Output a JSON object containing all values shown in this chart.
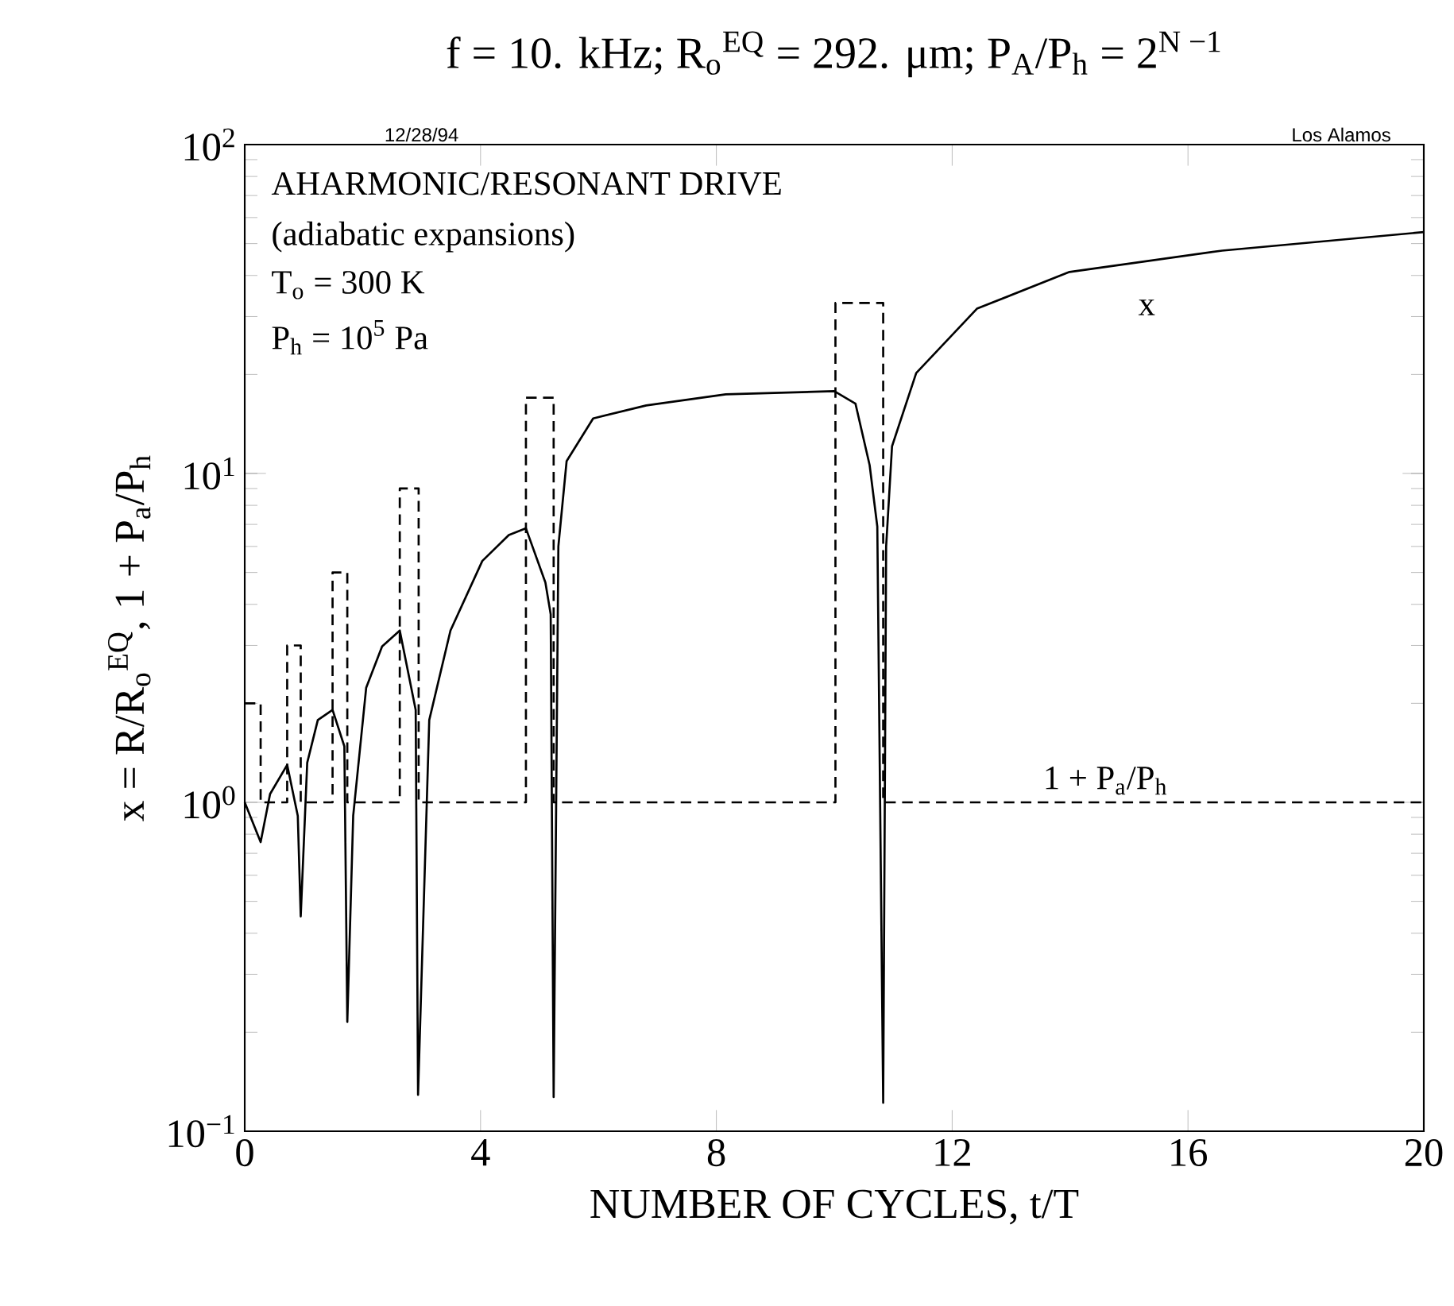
{
  "chart_data": {
    "type": "line",
    "title": "f = 10. kHz; R$_{o}$$^{EQ}$ = 292. μm; P$_{A}$/P$_{h}$ = 2$^{N −1}$",
    "xlabel": "NUMBER OF CYCLES, t/T",
    "ylabel": "x = R/R$_{o}$$^{EQ}$, 1 + P$_{a}$/P$_{h}$",
    "log": "y",
    "xlim": [
      0,
      20
    ],
    "xticks": [
      0,
      4,
      8,
      12,
      16,
      20
    ],
    "ylim": [
      0.1,
      100
    ],
    "yticks": [
      {
        "value": 0.1,
        "label": "10$^{−1}$"
      },
      {
        "value": 1,
        "label": "10$^{0}$"
      },
      {
        "value": 10,
        "label": "10$^{1}$"
      },
      {
        "value": 100,
        "label": "10$^{2}$"
      }
    ],
    "grid": false,
    "series": [
      {
        "line_style": "solid",
        "color": "#000000",
        "x": [
          0,
          0.27,
          0.43,
          0.72,
          0.9,
          0.95,
          1.06,
          1.24,
          1.49,
          1.69,
          1.74,
          1.84,
          2.06,
          2.33,
          2.63,
          2.9,
          2.94,
          3.13,
          3.49,
          4.03,
          4.48,
          4.77,
          5.1,
          5.19,
          5.24,
          5.32,
          5.46,
          5.91,
          6.81,
          8.16,
          10.0,
          10.36,
          10.6,
          10.73,
          10.83,
          10.88,
          10.98,
          11.39,
          12.42,
          13.99,
          16.58,
          20.0
        ],
        "values": [
          1,
          0.757,
          1.06,
          1.3,
          0.91,
          0.45,
          1.32,
          1.78,
          1.91,
          1.48,
          0.215,
          0.91,
          2.23,
          2.98,
          3.33,
          1.91,
          0.129,
          1.78,
          3.33,
          5.42,
          6.5,
          6.81,
          4.66,
          3.73,
          0.127,
          6.0,
          10.9,
          14.7,
          16.1,
          17.4,
          17.8,
          16.3,
          10.6,
          6.9,
          0.122,
          6.0,
          12.1,
          20.2,
          31.7,
          41.0,
          47.6,
          54.2
        ]
      },
      {
        "type": "step",
        "line_style": "dashed",
        "color": "#000000",
        "x": [
          0,
          0.27,
          0.72,
          0.95,
          1.49,
          1.74,
          2.63,
          2.95,
          4.77,
          5.24,
          10.02,
          10.83,
          20
        ],
        "values": [
          2,
          1,
          3,
          1,
          5,
          1,
          9,
          1,
          17,
          1,
          33,
          1,
          1
        ]
      }
    ],
    "annotations": [
      "AHARMONIC/RESONANT DRIVE",
      "(adiabatic expansions)",
      "T$_{o}$ = 300 K",
      "P$_{h}$ = 10$^{5}$ Pa",
      "12/28/94",
      "Los Alamos",
      "x",
      "1 + P$_{a}$/P$_{h}$"
    ]
  }
}
